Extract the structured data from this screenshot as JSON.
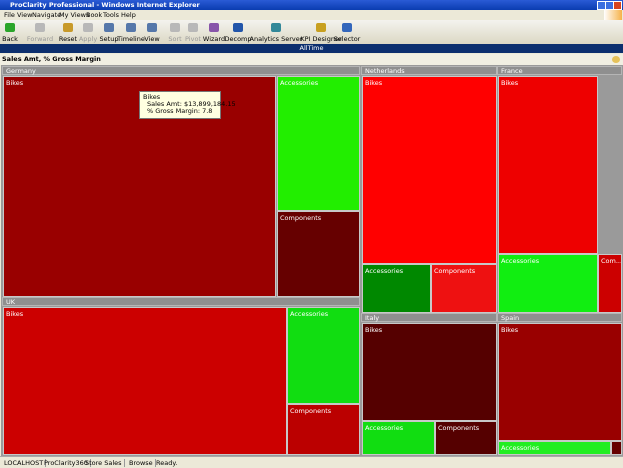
{
  "window": {
    "title": "ProClarity Professional - Windows Internet Explorer"
  },
  "menu": [
    "File",
    "View",
    "Navigate",
    "My Views",
    "Book",
    "Tools",
    "Help"
  ],
  "toolbar": [
    "Back",
    "Forward",
    "Reset",
    "Apply",
    "Setup",
    "Timeline",
    "View",
    "Sort",
    "Pivot",
    "Wizard",
    "Decomp",
    "Analytics Server",
    "KPI Designer",
    "Selector"
  ],
  "context_bar": "AllTime",
  "view_title": "Sales Amt, % Gross Margin",
  "treemap": {
    "groups": [
      {
        "label": "Germany",
        "tiles": [
          "Bikes",
          "Accessories",
          "Components"
        ]
      },
      {
        "label": "Netherlands",
        "tiles": [
          "Bikes",
          "Accessories",
          "Components"
        ]
      },
      {
        "label": "France",
        "tiles": [
          "Bikes",
          "Accessories",
          "Com..."
        ]
      },
      {
        "label": "UK",
        "tiles": [
          "Bikes",
          "Accessories",
          "Components"
        ]
      },
      {
        "label": "Italy",
        "tiles": [
          "Bikes",
          "Accessories",
          "Components"
        ]
      },
      {
        "label": "Spain",
        "tiles": [
          "Bikes",
          "Accessories"
        ]
      }
    ]
  },
  "tooltip": {
    "title": "Bikes",
    "lines": [
      "Sales Amt: $13,899,184.15",
      "% Gross Margin: 7.8"
    ]
  },
  "status_bar": [
    "LOCALHOST",
    "ProClarity360",
    "Store Sales",
    "Browse",
    "Ready."
  ]
}
